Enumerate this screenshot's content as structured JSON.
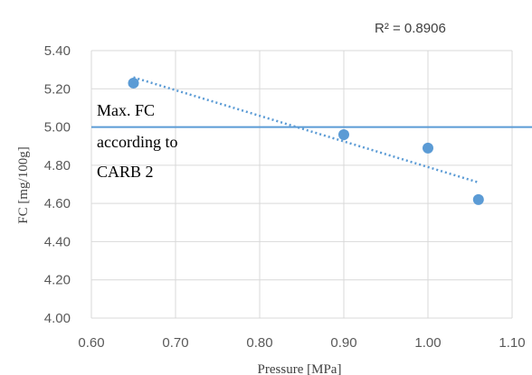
{
  "chart_data": {
    "type": "scatter",
    "xlabel": "Pressure [MPa]",
    "ylabel": "FC [mg/100g]",
    "xlim": [
      0.6,
      1.1
    ],
    "ylim": [
      4.0,
      5.4
    ],
    "x_ticks": [
      "0.60",
      "0.70",
      "0.80",
      "0.90",
      "1.00",
      "1.10"
    ],
    "y_ticks": [
      "4.00",
      "4.20",
      "4.40",
      "4.60",
      "4.80",
      "5.00",
      "5.20",
      "5.40"
    ],
    "grid": true,
    "points": [
      {
        "x": 0.65,
        "y": 5.23
      },
      {
        "x": 0.9,
        "y": 4.96
      },
      {
        "x": 1.0,
        "y": 4.89
      },
      {
        "x": 1.06,
        "y": 4.62
      }
    ],
    "trendline": {
      "type": "linear",
      "style": "dotted",
      "x_start": 0.65,
      "y_start": 5.26,
      "x_end": 1.06,
      "y_end": 4.71,
      "r2_text": "R² = 0.8906"
    },
    "reference_line": {
      "y": 5.0,
      "label_lines": [
        "Max. FC",
        "according to",
        "CARB 2"
      ]
    },
    "colors": {
      "marker": "#5B9BD5",
      "reference_line": "#5B9BD5",
      "trendline": "#5B9BD5",
      "grid": "#D9D9D9",
      "tick_text": "#595959"
    }
  }
}
